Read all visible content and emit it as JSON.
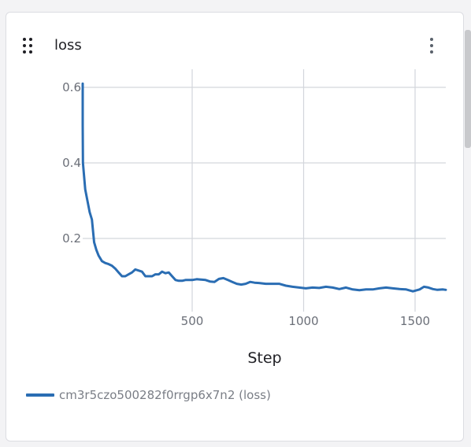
{
  "panel": {
    "title": "loss",
    "drag_icon": "drag-handle-icon",
    "menu_icon": "more-vertical-icon"
  },
  "chart_data": {
    "type": "line",
    "title": "loss",
    "xlabel": "Step",
    "ylabel": "",
    "xlim": [
      0,
      1650
    ],
    "ylim": [
      0.0,
      0.6
    ],
    "x_ticks": [
      500,
      1000,
      1500
    ],
    "y_ticks": [
      0.2,
      0.4,
      0.6
    ],
    "x_tick_labels": [
      "500",
      "1000",
      "1500"
    ],
    "y_tick_labels": [
      "0.2",
      "0.4",
      "0.6"
    ],
    "grid": true,
    "legend_position": "bottom-left",
    "series": [
      {
        "name": "cm3r5czo500282f0rrgp6x7n2 (loss)",
        "color": "#2a6db3",
        "x": [
          2,
          5,
          10,
          20,
          30,
          40,
          50,
          60,
          70,
          80,
          95,
          110,
          125,
          140,
          155,
          170,
          185,
          200,
          215,
          230,
          245,
          260,
          275,
          290,
          305,
          320,
          335,
          350,
          365,
          380,
          395,
          410,
          425,
          440,
          455,
          470,
          485,
          500,
          520,
          540,
          560,
          580,
          600,
          620,
          640,
          660,
          680,
          700,
          720,
          740,
          760,
          780,
          800,
          830,
          860,
          890,
          920,
          950,
          980,
          1010,
          1040,
          1070,
          1100,
          1130,
          1160,
          1190,
          1220,
          1250,
          1280,
          1310,
          1340,
          1370,
          1400,
          1430,
          1460,
          1490,
          1520,
          1540,
          1560,
          1580,
          1600,
          1625,
          1650
        ],
        "values": [
          0.61,
          0.5,
          0.4,
          0.33,
          0.3,
          0.27,
          0.25,
          0.19,
          0.17,
          0.155,
          0.14,
          0.135,
          0.132,
          0.128,
          0.12,
          0.11,
          0.1,
          0.1,
          0.105,
          0.11,
          0.118,
          0.115,
          0.112,
          0.1,
          0.1,
          0.1,
          0.105,
          0.105,
          0.112,
          0.108,
          0.11,
          0.1,
          0.09,
          0.088,
          0.088,
          0.09,
          0.09,
          0.09,
          0.092,
          0.091,
          0.09,
          0.086,
          0.085,
          0.093,
          0.095,
          0.09,
          0.085,
          0.08,
          0.078,
          0.08,
          0.085,
          0.083,
          0.082,
          0.08,
          0.08,
          0.08,
          0.075,
          0.072,
          0.07,
          0.068,
          0.07,
          0.069,
          0.072,
          0.07,
          0.066,
          0.07,
          0.065,
          0.063,
          0.065,
          0.065,
          0.068,
          0.07,
          0.068,
          0.066,
          0.065,
          0.06,
          0.065,
          0.072,
          0.07,
          0.066,
          0.064,
          0.065,
          0.064
        ]
      }
    ]
  }
}
